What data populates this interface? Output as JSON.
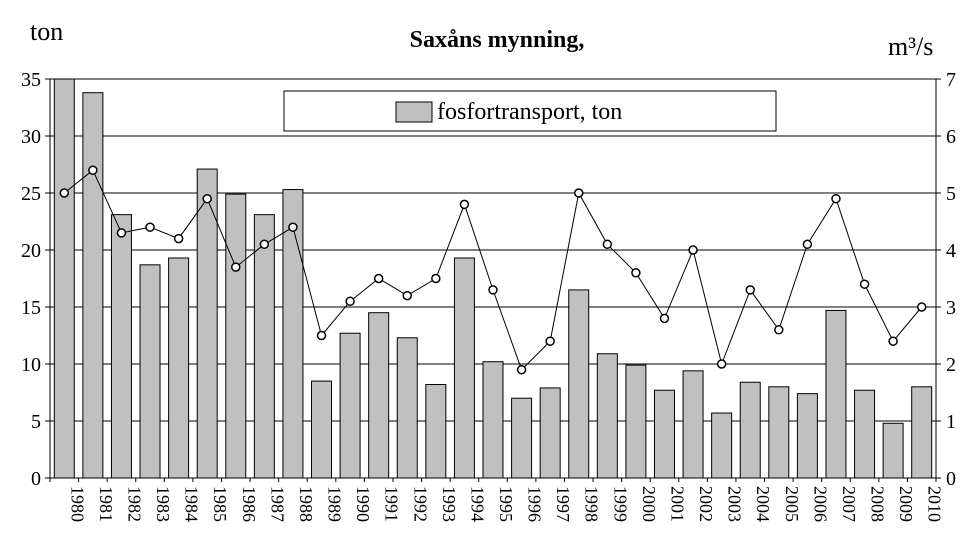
{
  "chart_data": {
    "type": "bar",
    "title": "Saxåns mynning,",
    "left_axis_label": "ton",
    "right_axis_label": "m³/s",
    "legend": {
      "label": "fosfortransport, ton",
      "placement": "top-center"
    },
    "grid": true,
    "categories": [
      "1980",
      "1981",
      "1982",
      "1983",
      "1984",
      "1985",
      "1986",
      "1987",
      "1988",
      "1989",
      "1990",
      "1991",
      "1992",
      "1993",
      "1994",
      "1995",
      "1996",
      "1997",
      "1998",
      "1999",
      "2000",
      "2001",
      "2002",
      "2003",
      "2004",
      "2005",
      "2006",
      "2007",
      "2008",
      "2009",
      "2010"
    ],
    "y_left": {
      "min": 0,
      "max": 35,
      "ticks": [
        0,
        5,
        10,
        15,
        20,
        25,
        30,
        35
      ]
    },
    "y_right": {
      "min": 0,
      "max": 7,
      "ticks": [
        0,
        1,
        2,
        3,
        4,
        5,
        6,
        7
      ]
    },
    "series": [
      {
        "name": "fosfortransport, ton",
        "type": "bar",
        "axis": "left",
        "color": "#c0c0c0",
        "values": [
          35.0,
          33.8,
          23.1,
          18.7,
          19.3,
          27.1,
          24.9,
          23.1,
          25.3,
          8.5,
          12.7,
          14.5,
          12.3,
          8.2,
          19.3,
          10.2,
          7.0,
          7.9,
          16.5,
          10.9,
          9.9,
          7.7,
          9.4,
          5.7,
          8.4,
          8.0,
          7.4,
          14.7,
          7.7,
          4.8,
          8.0
        ]
      },
      {
        "type": "line",
        "axis": "right",
        "color": "#000000",
        "values": [
          5.0,
          5.4,
          4.3,
          4.4,
          4.2,
          4.9,
          3.7,
          4.1,
          4.4,
          2.5,
          3.1,
          3.5,
          3.2,
          3.5,
          4.8,
          3.3,
          1.9,
          2.4,
          5.0,
          4.1,
          3.6,
          2.8,
          4.0,
          2.0,
          3.3,
          2.6,
          4.1,
          4.9,
          3.4,
          2.4,
          3.0
        ]
      }
    ]
  }
}
